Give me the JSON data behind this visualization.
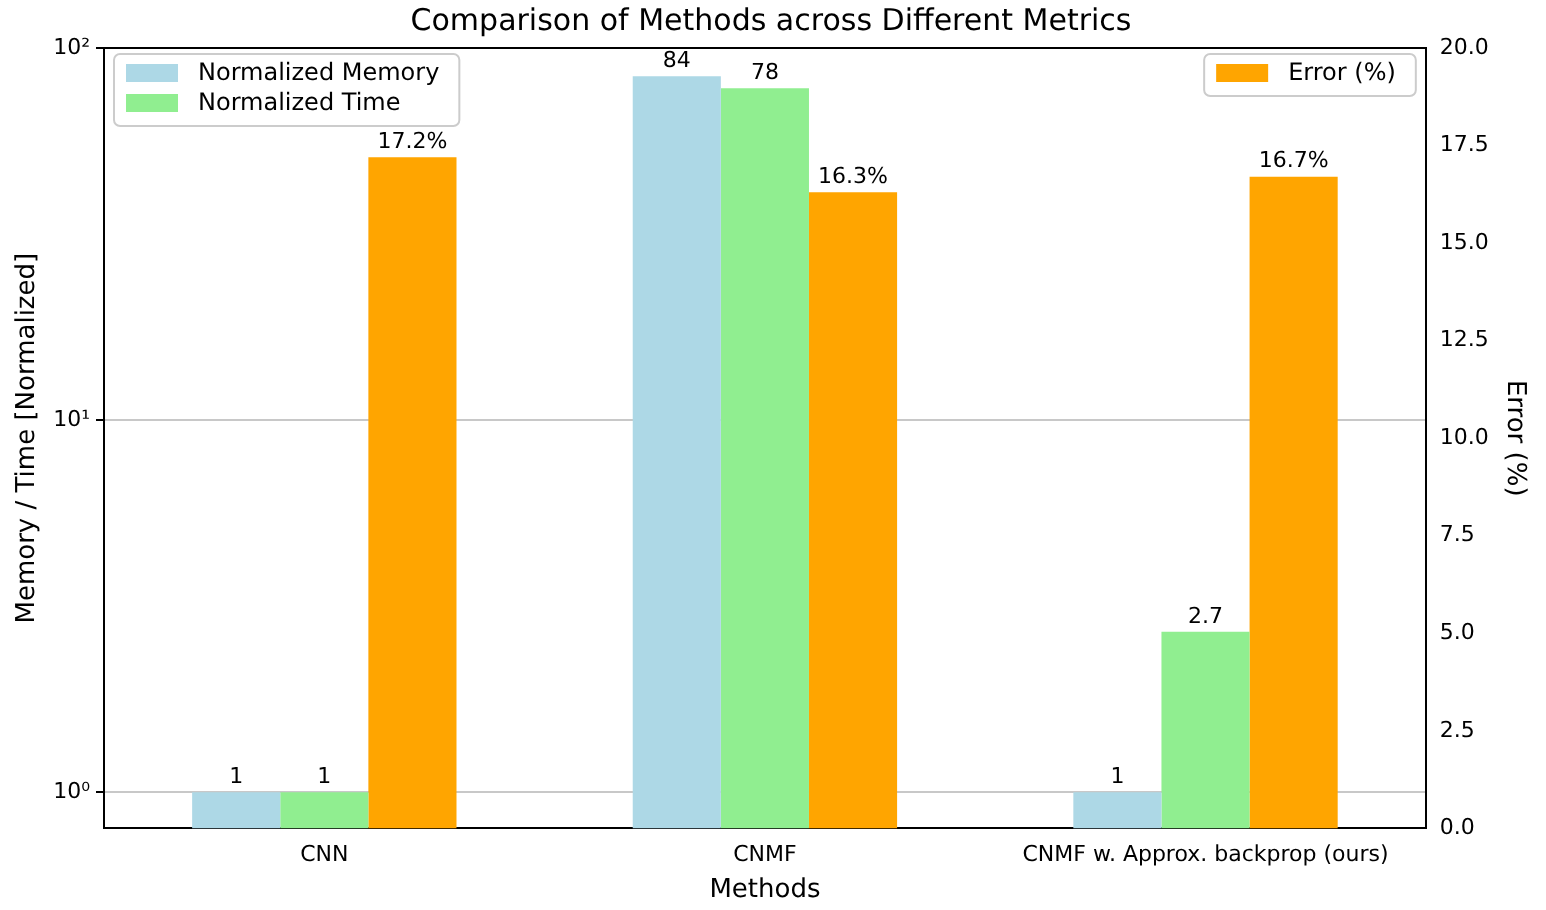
{
  "chart_data": {
    "type": "bar",
    "title": "Comparison of Methods across Different Metrics",
    "xlabel": "Methods",
    "ylabel": "Memory / Time [Normalized]",
    "y2label": "Error (%)",
    "categories": [
      "CNN",
      "CNMF",
      "CNMF w. Approx. backprop (ours)"
    ],
    "series": [
      {
        "name": "Normalized Memory",
        "color": "#add8e6",
        "values": [
          1,
          84,
          1
        ],
        "value_labels": [
          "1",
          "84",
          "1"
        ]
      },
      {
        "name": "Normalized Time",
        "color": "#90ee90",
        "values": [
          1,
          78,
          2.7
        ],
        "value_labels": [
          "1",
          "78",
          "2.7"
        ]
      },
      {
        "name": "Error (%)",
        "color": "#ffa500",
        "axis": "y2",
        "values": [
          17.2,
          16.3,
          16.7
        ],
        "value_labels": [
          "17.2%",
          "16.3%",
          "16.7%"
        ]
      }
    ],
    "log": "y",
    "ylim": [
      0.8,
      100
    ],
    "yticks": [
      {
        "value": 1,
        "label": "10⁰"
      },
      {
        "value": 10,
        "label": "10¹"
      },
      {
        "value": 100,
        "label": "10²"
      }
    ],
    "y2lim": [
      0,
      20
    ],
    "y2ticks": [
      {
        "value": 0,
        "label": "0.0"
      },
      {
        "value": 2.5,
        "label": "2.5"
      },
      {
        "value": 5,
        "label": "5.0"
      },
      {
        "value": 7.5,
        "label": "7.5"
      },
      {
        "value": 10,
        "label": "10.0"
      },
      {
        "value": 12.5,
        "label": "12.5"
      },
      {
        "value": 15,
        "label": "15.0"
      },
      {
        "value": 17.5,
        "label": "17.5"
      },
      {
        "value": 20,
        "label": "20.0"
      }
    ],
    "grid": "y",
    "legend": "top left"
  }
}
